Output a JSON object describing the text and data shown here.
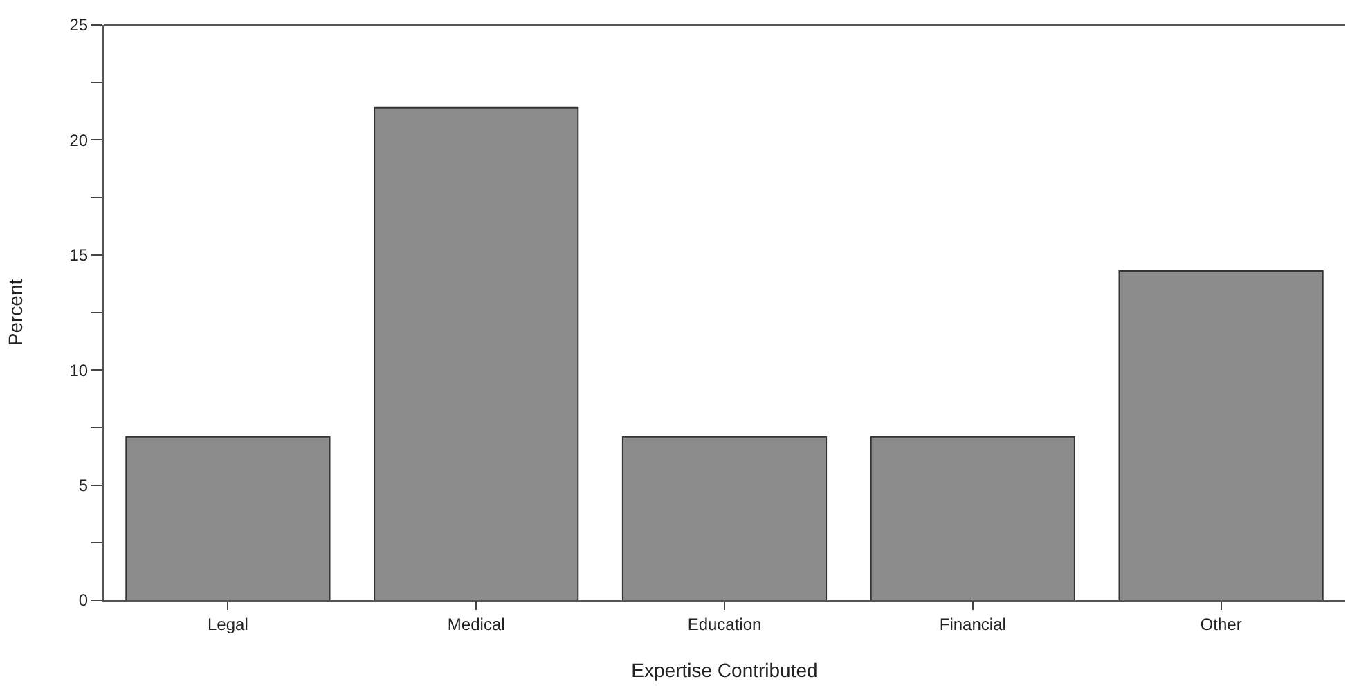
{
  "chart_data": {
    "type": "bar",
    "xlabel": "Expertise Contributed",
    "ylabel": "Percent",
    "categories": [
      "Legal",
      "Medical",
      "Education",
      "Financial",
      "Other"
    ],
    "values": [
      7.1,
      21.4,
      7.1,
      7.1,
      14.3
    ],
    "color": "#8c8c8c",
    "ylim": [
      0,
      25
    ],
    "yticks": [
      0,
      {
        "value": 2.5,
        "label": null
      },
      5,
      {
        "value": 7.5,
        "label": null
      },
      10,
      {
        "value": 12.5,
        "label": null
      },
      15,
      {
        "value": 17.5,
        "label": null
      },
      20,
      {
        "value": 22.5,
        "label": null
      },
      25
    ],
    "grid": false,
    "legend": false
  }
}
